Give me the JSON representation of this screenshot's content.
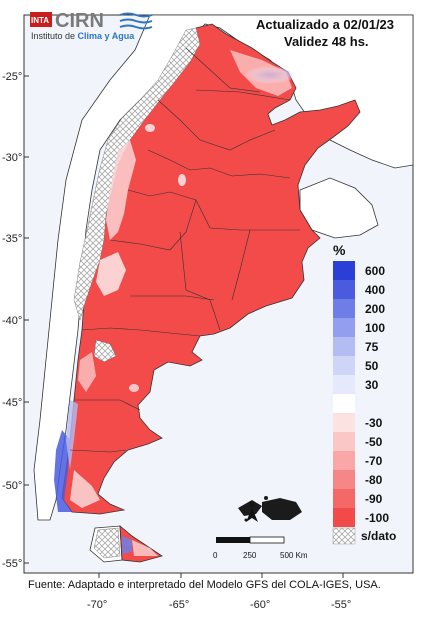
{
  "header": {
    "updated": "Actualizado a 02/01/23",
    "validity": "Validez 48 hs."
  },
  "logo": {
    "inta": "INTA",
    "cirn": "CIRN",
    "institute_prefix": "Instituto de ",
    "institute_name": "Clima y Agua"
  },
  "axes": {
    "lat_ticks": [
      "-25°",
      "-30°",
      "-35°",
      "-40°",
      "-45°",
      "-50°",
      "-55°"
    ],
    "lon_ticks": [
      "-70°",
      "-65°",
      "-60°",
      "-55°"
    ]
  },
  "legend": {
    "unit": "%",
    "no_data": "s/dato",
    "items": [
      {
        "label": "600",
        "color": "#2b3fd6"
      },
      {
        "label": "400",
        "color": "#4a5be0"
      },
      {
        "label": "200",
        "color": "#6f7ee7"
      },
      {
        "label": "100",
        "color": "#939fee"
      },
      {
        "label": "75",
        "color": "#b3bcf3"
      },
      {
        "label": "50",
        "color": "#cfd5f7"
      },
      {
        "label": "30",
        "color": "#e6e9fb"
      },
      {
        "label": "",
        "color": "#ffffff"
      },
      {
        "label": "-30",
        "color": "#fde2e2"
      },
      {
        "label": "-50",
        "color": "#fbc6c6"
      },
      {
        "label": "-70",
        "color": "#f9a7a7"
      },
      {
        "label": "-80",
        "color": "#f78787"
      },
      {
        "label": "-90",
        "color": "#f56868"
      },
      {
        "label": "-100",
        "color": "#f24a4a"
      }
    ]
  },
  "scalebar": {
    "labels": [
      "0",
      "250",
      "500 Km"
    ]
  },
  "source": "Fuente: Adaptado e interpretado del Modelo GFS del COLA-IGES, USA.",
  "colors": {
    "ocean": "#eef3fb",
    "land": "#ffffff",
    "anomaly_red": "#f34a4a",
    "nodata_hatch": "#bdbdbd"
  }
}
